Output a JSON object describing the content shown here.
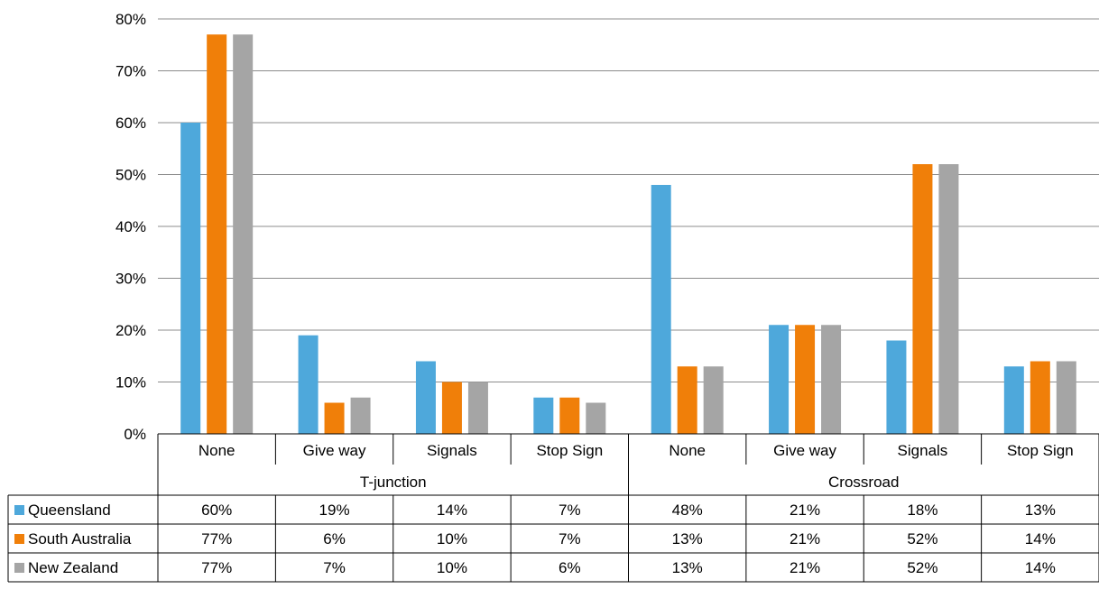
{
  "chart_data": {
    "type": "bar",
    "groups": [
      {
        "label": "T-junction",
        "categories": [
          "None",
          "Give way",
          "Signals",
          "Stop Sign"
        ]
      },
      {
        "label": "Crossroad",
        "categories": [
          "None",
          "Give way",
          "Signals",
          "Stop Sign"
        ]
      }
    ],
    "series": [
      {
        "name": "Queensland",
        "color": "#4EA8DB",
        "values": [
          60,
          19,
          14,
          7,
          48,
          21,
          18,
          13
        ],
        "labels": [
          "60%",
          "19%",
          "14%",
          "7%",
          "48%",
          "21%",
          "18%",
          "13%"
        ]
      },
      {
        "name": "South Australia",
        "color": "#F07F09",
        "values": [
          77,
          6,
          10,
          7,
          13,
          21,
          52,
          14
        ],
        "labels": [
          "77%",
          "6%",
          "10%",
          "7%",
          "13%",
          "21%",
          "52%",
          "14%"
        ]
      },
      {
        "name": "New Zealand",
        "color": "#A5A5A5",
        "values": [
          77,
          7,
          10,
          6,
          13,
          21,
          52,
          14
        ],
        "labels": [
          "77%",
          "7%",
          "10%",
          "6%",
          "13%",
          "21%",
          "52%",
          "14%"
        ]
      }
    ],
    "y_ticks": [
      "0%",
      "10%",
      "20%",
      "30%",
      "40%",
      "50%",
      "60%",
      "70%",
      "80%"
    ],
    "ylim": [
      0,
      80
    ],
    "grid": true,
    "legend": "data-table"
  }
}
